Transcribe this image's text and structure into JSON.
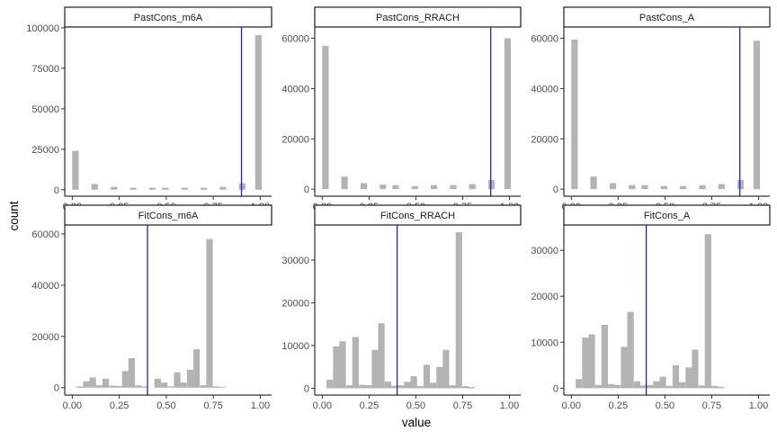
{
  "chart_data": {
    "type": "bar",
    "xlabel": "value",
    "ylabel": "count",
    "grid": false,
    "bar_color": "#b3b3b3",
    "vline_color": "#1f1fe0",
    "x_ticks": [
      0,
      0.25,
      0.5,
      0.75,
      1
    ],
    "x_tick_labels": [
      "0.00",
      "0.25",
      "0.50",
      "0.75",
      "1.00"
    ],
    "bin_width": 0.0345,
    "panels": [
      {
        "title": "PastCons_m6A",
        "xlim": [
          -0.04,
          1.06
        ],
        "ylim": [
          -4000,
          100500
        ],
        "y_ticks": [
          0,
          25000,
          50000,
          75000,
          100000
        ],
        "y_tick_labels": [
          "0",
          "25000",
          "50000",
          "75000",
          "100000"
        ],
        "vline": 0.9,
        "bars": [
          {
            "x": 0.017,
            "y": 24000
          },
          {
            "x": 0.119,
            "y": 3500
          },
          {
            "x": 0.222,
            "y": 1800
          },
          {
            "x": 0.324,
            "y": 1200
          },
          {
            "x": 0.426,
            "y": 1200
          },
          {
            "x": 0.495,
            "y": 1200
          },
          {
            "x": 0.597,
            "y": 1200
          },
          {
            "x": 0.7,
            "y": 1200
          },
          {
            "x": 0.802,
            "y": 1800
          },
          {
            "x": 0.904,
            "y": 4000
          },
          {
            "x": 0.99,
            "y": 95500
          }
        ]
      },
      {
        "title": "PastCons_RRACH",
        "xlim": [
          -0.04,
          1.06
        ],
        "ylim": [
          -2800,
          64500
        ],
        "y_ticks": [
          0,
          20000,
          40000,
          60000
        ],
        "y_tick_labels": [
          "0",
          "20000",
          "40000",
          "60000"
        ],
        "vline": 0.9,
        "bars": [
          {
            "x": 0.017,
            "y": 57000
          },
          {
            "x": 0.119,
            "y": 5000
          },
          {
            "x": 0.222,
            "y": 2400
          },
          {
            "x": 0.324,
            "y": 1800
          },
          {
            "x": 0.392,
            "y": 1600
          },
          {
            "x": 0.495,
            "y": 1200
          },
          {
            "x": 0.597,
            "y": 1600
          },
          {
            "x": 0.7,
            "y": 1600
          },
          {
            "x": 0.802,
            "y": 2000
          },
          {
            "x": 0.904,
            "y": 3600
          },
          {
            "x": 0.99,
            "y": 60000
          }
        ]
      },
      {
        "title": "PastCons_A",
        "xlim": [
          -0.04,
          1.06
        ],
        "ylim": [
          -2800,
          64500
        ],
        "y_ticks": [
          0,
          20000,
          40000,
          60000
        ],
        "y_tick_labels": [
          "0",
          "20000",
          "40000",
          "60000"
        ],
        "vline": 0.9,
        "bars": [
          {
            "x": 0.017,
            "y": 59500
          },
          {
            "x": 0.119,
            "y": 5000
          },
          {
            "x": 0.222,
            "y": 2400
          },
          {
            "x": 0.324,
            "y": 1600
          },
          {
            "x": 0.392,
            "y": 1600
          },
          {
            "x": 0.495,
            "y": 1200
          },
          {
            "x": 0.597,
            "y": 1200
          },
          {
            "x": 0.7,
            "y": 1600
          },
          {
            "x": 0.802,
            "y": 2000
          },
          {
            "x": 0.904,
            "y": 3600
          },
          {
            "x": 0.99,
            "y": 59000
          }
        ]
      },
      {
        "title": "FitCons_m6A",
        "xlim": [
          -0.04,
          1.06
        ],
        "ylim": [
          -2900,
          63500
        ],
        "y_ticks": [
          0,
          20000,
          40000,
          60000
        ],
        "y_tick_labels": [
          "0",
          "20000",
          "40000",
          "60000"
        ],
        "vline": 0.4,
        "bars": [
          {
            "x": 0.04,
            "y": 500
          },
          {
            "x": 0.075,
            "y": 2500
          },
          {
            "x": 0.109,
            "y": 4000
          },
          {
            "x": 0.144,
            "y": 1000
          },
          {
            "x": 0.178,
            "y": 3500
          },
          {
            "x": 0.213,
            "y": 800
          },
          {
            "x": 0.247,
            "y": 700
          },
          {
            "x": 0.282,
            "y": 6500
          },
          {
            "x": 0.316,
            "y": 11500
          },
          {
            "x": 0.351,
            "y": 900
          },
          {
            "x": 0.385,
            "y": 500
          },
          {
            "x": 0.454,
            "y": 3500
          },
          {
            "x": 0.489,
            "y": 2000
          },
          {
            "x": 0.523,
            "y": 500
          },
          {
            "x": 0.558,
            "y": 6000
          },
          {
            "x": 0.592,
            "y": 2000
          },
          {
            "x": 0.627,
            "y": 7000
          },
          {
            "x": 0.661,
            "y": 15000
          },
          {
            "x": 0.696,
            "y": 1000
          },
          {
            "x": 0.73,
            "y": 58000
          },
          {
            "x": 0.765,
            "y": 500
          },
          {
            "x": 0.799,
            "y": 300
          }
        ]
      },
      {
        "title": "FitCons_RRACH",
        "xlim": [
          -0.04,
          1.06
        ],
        "ylim": [
          -1600,
          38200
        ],
        "y_ticks": [
          0,
          10000,
          20000,
          30000
        ],
        "y_tick_labels": [
          "0",
          "10000",
          "20000",
          "30000"
        ],
        "vline": 0.4,
        "bars": [
          {
            "x": 0.04,
            "y": 2000
          },
          {
            "x": 0.075,
            "y": 9800
          },
          {
            "x": 0.109,
            "y": 11000
          },
          {
            "x": 0.144,
            "y": 700
          },
          {
            "x": 0.178,
            "y": 12000
          },
          {
            "x": 0.213,
            "y": 800
          },
          {
            "x": 0.247,
            "y": 700
          },
          {
            "x": 0.282,
            "y": 9000
          },
          {
            "x": 0.316,
            "y": 15200
          },
          {
            "x": 0.351,
            "y": 1600
          },
          {
            "x": 0.385,
            "y": 600
          },
          {
            "x": 0.42,
            "y": 700
          },
          {
            "x": 0.454,
            "y": 1500
          },
          {
            "x": 0.489,
            "y": 2800
          },
          {
            "x": 0.523,
            "y": 500
          },
          {
            "x": 0.558,
            "y": 5500
          },
          {
            "x": 0.592,
            "y": 1300
          },
          {
            "x": 0.627,
            "y": 5000
          },
          {
            "x": 0.661,
            "y": 9000
          },
          {
            "x": 0.696,
            "y": 700
          },
          {
            "x": 0.73,
            "y": 36500
          },
          {
            "x": 0.765,
            "y": 500
          },
          {
            "x": 0.799,
            "y": 300
          }
        ]
      },
      {
        "title": "FitCons_A",
        "xlim": [
          -0.04,
          1.06
        ],
        "ylim": [
          -1500,
          35500
        ],
        "y_ticks": [
          0,
          10000,
          20000,
          30000
        ],
        "y_tick_labels": [
          "0",
          "10000",
          "20000",
          "30000"
        ],
        "vline": 0.4,
        "bars": [
          {
            "x": 0.04,
            "y": 2000
          },
          {
            "x": 0.075,
            "y": 11000
          },
          {
            "x": 0.109,
            "y": 11700
          },
          {
            "x": 0.144,
            "y": 700
          },
          {
            "x": 0.178,
            "y": 13800
          },
          {
            "x": 0.213,
            "y": 900
          },
          {
            "x": 0.247,
            "y": 700
          },
          {
            "x": 0.282,
            "y": 9000
          },
          {
            "x": 0.316,
            "y": 16600
          },
          {
            "x": 0.351,
            "y": 1500
          },
          {
            "x": 0.385,
            "y": 600
          },
          {
            "x": 0.42,
            "y": 700
          },
          {
            "x": 0.454,
            "y": 1500
          },
          {
            "x": 0.489,
            "y": 2500
          },
          {
            "x": 0.523,
            "y": 500
          },
          {
            "x": 0.558,
            "y": 5000
          },
          {
            "x": 0.592,
            "y": 1300
          },
          {
            "x": 0.627,
            "y": 4500
          },
          {
            "x": 0.661,
            "y": 8400
          },
          {
            "x": 0.696,
            "y": 600
          },
          {
            "x": 0.73,
            "y": 33500
          },
          {
            "x": 0.765,
            "y": 500
          },
          {
            "x": 0.799,
            "y": 300
          }
        ]
      }
    ]
  }
}
